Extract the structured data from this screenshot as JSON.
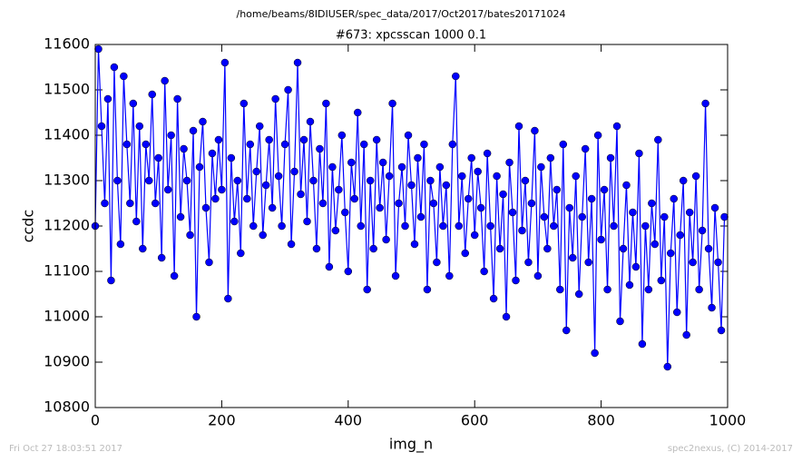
{
  "chart_data": {
    "type": "line",
    "title": "/home/beams/8IDIUSER/spec_data/2017/Oct2017/bates20171024",
    "subtitle": "#673: xpcsscan 1000 0.1",
    "xlabel": "img_n",
    "ylabel": "ccdc",
    "footer_left": "Fri Oct 27 18:03:51 2017",
    "footer_right": "spec2nexus, (C) 2014-2017",
    "xlim": [
      0,
      1000
    ],
    "xticks": [
      0,
      200,
      400,
      600,
      800,
      1000
    ],
    "ylim": [
      10800,
      11600
    ],
    "yticks": [
      10800,
      10900,
      11000,
      11100,
      11200,
      11300,
      11400,
      11500,
      11600
    ],
    "x": [
      0,
      5,
      10,
      15,
      20,
      25,
      30,
      35,
      40,
      45,
      50,
      55,
      60,
      65,
      70,
      75,
      80,
      85,
      90,
      95,
      100,
      105,
      110,
      115,
      120,
      125,
      130,
      135,
      140,
      145,
      150,
      155,
      160,
      165,
      170,
      175,
      180,
      185,
      190,
      195,
      200,
      205,
      210,
      215,
      220,
      225,
      230,
      235,
      240,
      245,
      250,
      255,
      260,
      265,
      270,
      275,
      280,
      285,
      290,
      295,
      300,
      305,
      310,
      315,
      320,
      325,
      330,
      335,
      340,
      345,
      350,
      355,
      360,
      365,
      370,
      375,
      380,
      385,
      390,
      395,
      400,
      405,
      410,
      415,
      420,
      425,
      430,
      435,
      440,
      445,
      450,
      455,
      460,
      465,
      470,
      475,
      480,
      485,
      490,
      495,
      500,
      505,
      510,
      515,
      520,
      525,
      530,
      535,
      540,
      545,
      550,
      555,
      560,
      565,
      570,
      575,
      580,
      585,
      590,
      595,
      600,
      605,
      610,
      615,
      620,
      625,
      630,
      635,
      640,
      645,
      650,
      655,
      660,
      665,
      670,
      675,
      680,
      685,
      690,
      695,
      700,
      705,
      710,
      715,
      720,
      725,
      730,
      735,
      740,
      745,
      750,
      755,
      760,
      765,
      770,
      775,
      780,
      785,
      790,
      795,
      800,
      805,
      810,
      815,
      820,
      825,
      830,
      835,
      840,
      845,
      850,
      855,
      860,
      865,
      870,
      875,
      880,
      885,
      890,
      895,
      900,
      905,
      910,
      915,
      920,
      925,
      930,
      935,
      940,
      945,
      950,
      955,
      960,
      965,
      970,
      975,
      980,
      985,
      990,
      995
    ],
    "series": [
      {
        "name": "ccdc",
        "color": "#0000ff",
        "values": [
          11200,
          11590,
          11420,
          11250,
          11480,
          11080,
          11550,
          11300,
          11160,
          11530,
          11380,
          11250,
          11470,
          11210,
          11420,
          11150,
          11380,
          11300,
          11490,
          11250,
          11350,
          11130,
          11520,
          11280,
          11400,
          11090,
          11480,
          11220,
          11370,
          11300,
          11180,
          11410,
          11000,
          11330,
          11430,
          11240,
          11120,
          11360,
          11260,
          11390,
          11280,
          11560,
          11040,
          11350,
          11210,
          11300,
          11140,
          11470,
          11260,
          11380,
          11200,
          11320,
          11420,
          11180,
          11290,
          11390,
          11240,
          11480,
          11310,
          11200,
          11380,
          11500,
          11160,
          11320,
          11560,
          11270,
          11390,
          11210,
          11430,
          11300,
          11150,
          11370,
          11250,
          11470,
          11110,
          11330,
          11190,
          11280,
          11400,
          11230,
          11100,
          11340,
          11260,
          11450,
          11200,
          11380,
          11060,
          11300,
          11150,
          11390,
          11240,
          11340,
          11170,
          11310,
          11470,
          11090,
          11250,
          11330,
          11200,
          11400,
          11290,
          11160,
          11350,
          11220,
          11380,
          11060,
          11300,
          11250,
          11120,
          11330,
          11200,
          11290,
          11090,
          11380,
          11530,
          11200,
          11310,
          11140,
          11260,
          11350,
          11180,
          11320,
          11240,
          11100,
          11360,
          11200,
          11040,
          11310,
          11150,
          11270,
          11000,
          11340,
          11230,
          11080,
          11420,
          11190,
          11300,
          11120,
          11250,
          11410,
          11090,
          11330,
          11220,
          11150,
          11350,
          11200,
          11280,
          11060,
          11380,
          10970,
          11240,
          11130,
          11310,
          11050,
          11220,
          11370,
          11120,
          11260,
          10920,
          11400,
          11170,
          11280,
          11060,
          11350,
          11200,
          11420,
          10990,
          11150,
          11290,
          11070,
          11230,
          11110,
          11360,
          10940,
          11200,
          11060,
          11250,
          11160,
          11390,
          11080,
          11220,
          10890,
          11140,
          11260,
          11010,
          11180,
          11300,
          10960,
          11230,
          11120,
          11310,
          11060,
          11190,
          11470,
          11150,
          11020,
          11240,
          11120,
          10970,
          11220
        ]
      }
    ]
  }
}
